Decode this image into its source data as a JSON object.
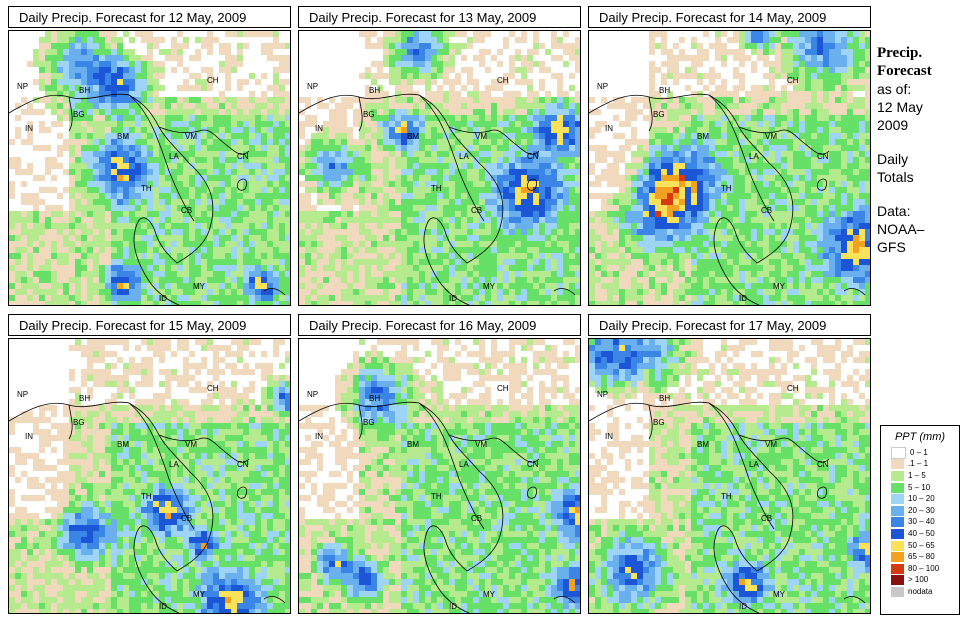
{
  "panels": [
    {
      "title": "Daily Precip. Forecast for  12 May, 2009"
    },
    {
      "title": "Daily Precip. Forecast for  13 May, 2009"
    },
    {
      "title": "Daily Precip. Forecast for  14 May, 2009"
    },
    {
      "title": "Daily Precip. Forecast for  15 May, 2009"
    },
    {
      "title": "Daily Precip. Forecast for  16 May, 2009"
    },
    {
      "title": "Daily Precip. Forecast for  17 May, 2009"
    }
  ],
  "country_labels": [
    "NP",
    "BH",
    "BG",
    "IN",
    "CH",
    "BM",
    "VM",
    "LA",
    "TH",
    "CB",
    "CN",
    "MY",
    "ID"
  ],
  "sidebar": {
    "title_line1": "Precip.",
    "title_line2": "Forecast",
    "asof_line1": "as of:",
    "asof_line2": "12 May",
    "asof_line3": "2009",
    "totals_line1": "Daily",
    "totals_line2": "Totals",
    "data_line1": "Data:",
    "data_line2": "NOAA–",
    "data_line3": "GFS"
  },
  "legend": {
    "title": "PPT (mm)",
    "items": [
      {
        "label": "0 – 1",
        "color": "#ffffff"
      },
      {
        "label": ".1 – 1",
        "color": "#f0d9bd"
      },
      {
        "label": "1 – 5",
        "color": "#b5ea8e"
      },
      {
        "label": "5 – 10",
        "color": "#66e066"
      },
      {
        "label": "10 – 20",
        "color": "#9ed4f5"
      },
      {
        "label": "20 – 30",
        "color": "#6ab0ee"
      },
      {
        "label": "30 – 40",
        "color": "#3a85e6"
      },
      {
        "label": "40 – 50",
        "color": "#1a56d6"
      },
      {
        "label": "50 – 65",
        "color": "#f7e25a"
      },
      {
        "label": "65 – 80",
        "color": "#f2a21f"
      },
      {
        "label": "80 – 100",
        "color": "#d63a12"
      },
      {
        "label": "> 100",
        "color": "#8a1010"
      },
      {
        "label": "nodata",
        "color": "#c8c8c8"
      }
    ]
  }
}
